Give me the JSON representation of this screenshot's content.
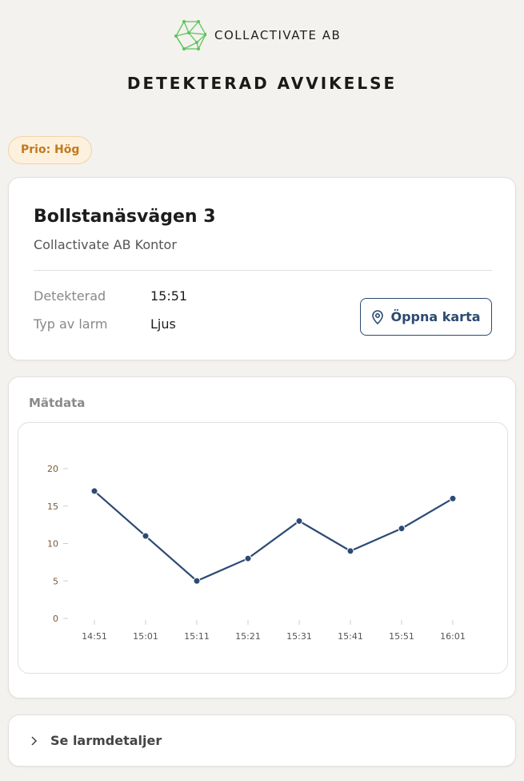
{
  "header": {
    "brand": "COLLACTIVATE AB",
    "title": "DETEKTERAD AVVIKELSE",
    "logo_icon": "network-hexagon-icon",
    "brand_color": "#5cc45a"
  },
  "priority": {
    "label": "Prio: Hög"
  },
  "location": {
    "address": "Bollstanäsvägen 3",
    "name": "Collactivate AB Kontor",
    "fields": [
      {
        "label": "Detekterad",
        "value": "15:51"
      },
      {
        "label": "Typ av larm",
        "value": "Ljus"
      }
    ],
    "map_button": "Öppna karta",
    "map_icon": "map-pin-icon"
  },
  "measurements": {
    "title": "Mätdata"
  },
  "chart_data": {
    "type": "line",
    "categories": [
      "14:51",
      "15:01",
      "15:11",
      "15:21",
      "15:31",
      "15:41",
      "15:51",
      "16:01"
    ],
    "values": [
      17,
      11,
      5,
      8,
      13,
      9,
      12,
      16
    ],
    "yticks": [
      0,
      5,
      10,
      15,
      20
    ],
    "ylim": [
      0,
      20
    ],
    "grid": false,
    "color": "#2c4a73"
  },
  "details": {
    "label": "Se larmdetaljer",
    "icon": "chevron-right-icon"
  }
}
